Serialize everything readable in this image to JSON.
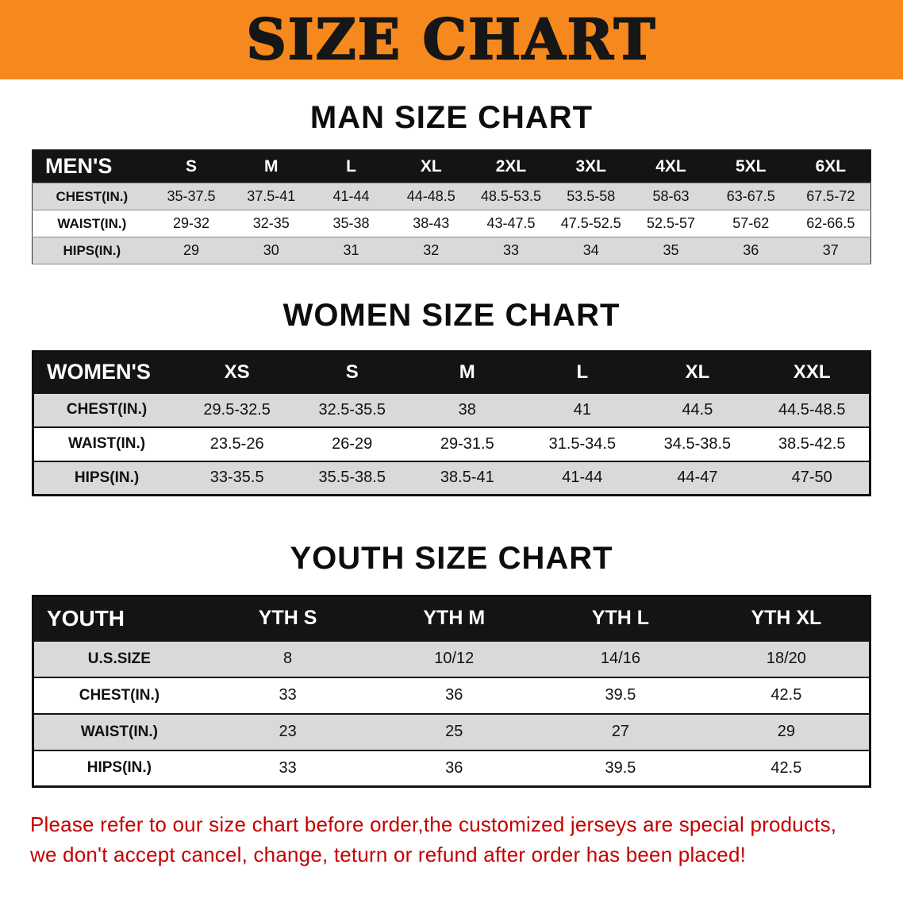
{
  "banner": {
    "title": "SIZE CHART",
    "bg_color": "#F6891E",
    "text_color": "#161616"
  },
  "sections": [
    {
      "heading": "MAN SIZE CHART",
      "table": {
        "header_label": "MEN'S",
        "columns": [
          "S",
          "M",
          "L",
          "XL",
          "2XL",
          "3XL",
          "4XL",
          "5XL",
          "6XL"
        ],
        "rows": [
          {
            "label": "CHEST(IN.)",
            "values": [
              "35-37.5",
              "37.5-41",
              "41-44",
              "44-48.5",
              "48.5-53.5",
              "53.5-58",
              "58-63",
              "63-67.5",
              "67.5-72"
            ]
          },
          {
            "label": "WAIST(IN.)",
            "values": [
              "29-32",
              "32-35",
              "35-38",
              "38-43",
              "43-47.5",
              "47.5-52.5",
              "52.5-57",
              "57-62",
              "62-66.5"
            ]
          },
          {
            "label": "HIPS(IN.)",
            "values": [
              "29",
              "30",
              "31",
              "32",
              "33",
              "34",
              "35",
              "36",
              "37"
            ]
          }
        ]
      }
    },
    {
      "heading": "WOMEN SIZE CHART",
      "table": {
        "header_label": "WOMEN'S",
        "columns": [
          "XS",
          "S",
          "M",
          "L",
          "XL",
          "XXL"
        ],
        "rows": [
          {
            "label": "CHEST(IN.)",
            "values": [
              "29.5-32.5",
              "32.5-35.5",
              "38",
              "41",
              "44.5",
              "44.5-48.5"
            ]
          },
          {
            "label": "WAIST(IN.)",
            "values": [
              "23.5-26",
              "26-29",
              "29-31.5",
              "31.5-34.5",
              "34.5-38.5",
              "38.5-42.5"
            ]
          },
          {
            "label": "HIPS(IN.)",
            "values": [
              "33-35.5",
              "35.5-38.5",
              "38.5-41",
              "41-44",
              "44-47",
              "47-50"
            ]
          }
        ]
      }
    },
    {
      "heading": "YOUTH SIZE CHART",
      "table": {
        "header_label": "YOUTH",
        "columns": [
          "YTH S",
          "YTH M",
          "YTH L",
          "YTH XL"
        ],
        "rows": [
          {
            "label": "U.S.SIZE",
            "values": [
              "8",
              "10/12",
              "14/16",
              "18/20"
            ]
          },
          {
            "label": "CHEST(IN.)",
            "values": [
              "33",
              "36",
              "39.5",
              "42.5"
            ]
          },
          {
            "label": "WAIST(IN.)",
            "values": [
              "23",
              "25",
              "27",
              "29"
            ]
          },
          {
            "label": "HIPS(IN.)",
            "values": [
              "33",
              "36",
              "39.5",
              "42.5"
            ]
          }
        ]
      }
    }
  ],
  "disclaimer": {
    "color": "#c40000",
    "line1": "Please refer to our size chart before order,the customized jerseys are special products,",
    "line2": "we don't accept cancel, change, teturn or refund after order has been placed!"
  }
}
